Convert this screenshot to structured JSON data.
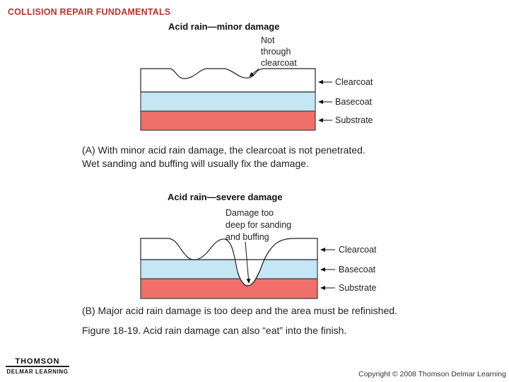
{
  "header": {
    "title": "COLLISION REPAIR FUNDAMENTALS"
  },
  "panel_a": {
    "title": "Acid rain—minor damage",
    "annotation": [
      "Not",
      "through",
      "clearcoat"
    ],
    "layers": [
      "Clearcoat",
      "Basecoat",
      "Substrate"
    ],
    "caption_line1": "(A) With minor acid rain damage, the clearcoat is not penetrated.",
    "caption_line2": "Wet sanding and buffing will usually fix the damage."
  },
  "panel_b": {
    "title": "Acid rain—severe damage",
    "annotation": [
      "Damage too",
      "deep for sanding",
      "and buffing"
    ],
    "layers": [
      "Clearcoat",
      "Basecoat",
      "Substrate"
    ],
    "caption": "(B) Major acid rain damage is too deep and the area must be refinished."
  },
  "figure_caption": "Figure 18-19.  Acid rain damage can also “eat” into the finish.",
  "footer": {
    "logo_brand": "THOMSON",
    "logo_sub": "DELMAR LEARNING",
    "copyright": "Copyright © 2008 Thomson Delmar Learning"
  },
  "colors": {
    "header": "#b5362b",
    "clearcoat": "#ffffff",
    "basecoat": "#c5e6f4",
    "substrate": "#ef6f6a"
  }
}
